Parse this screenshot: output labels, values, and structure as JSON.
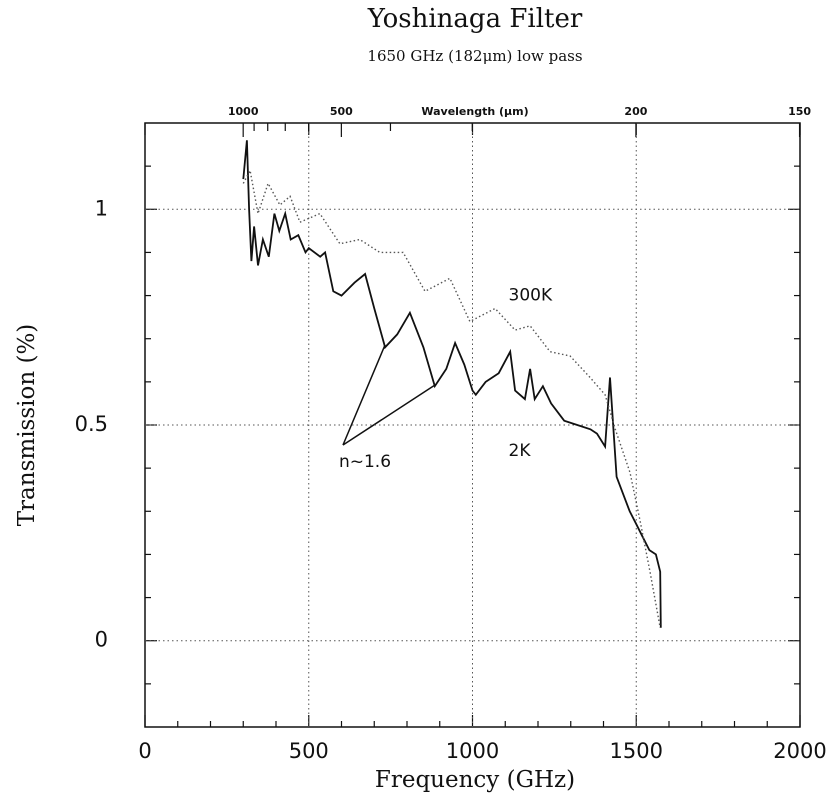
{
  "chart_data": {
    "type": "line",
    "title": "Yoshinaga Filter",
    "subtitle": "1650 GHz (182μm) low pass",
    "xlabel": "Frequency (GHz)",
    "ylabel": "Transmission (%)",
    "x2label": "Wavelength (μm)",
    "xlim": [
      0,
      2000
    ],
    "xticks": [
      0,
      500,
      1000,
      1500,
      2000
    ],
    "xminor": [
      100,
      200,
      300,
      400,
      600,
      700,
      800,
      900,
      1100,
      1200,
      1300,
      1400,
      1600,
      1700,
      1800,
      1900
    ],
    "ylim": [
      -0.2,
      1.2
    ],
    "yticks": [
      0,
      0.5,
      1
    ],
    "yminor": [
      -0.1,
      0.1,
      0.2,
      0.3,
      0.4,
      0.6,
      0.7,
      0.8,
      0.9,
      1.1
    ],
    "x2ticks": [
      1000,
      500,
      200,
      150
    ],
    "x2minor": [
      900,
      800,
      700,
      600,
      400,
      300
    ],
    "grid": true,
    "series": [
      {
        "name": "300K",
        "color": "#111111",
        "style": "solid",
        "x": [
          300,
          311,
          318,
          325,
          333,
          345,
          360,
          378,
          395,
          410,
          428,
          445,
          468,
          490,
          500,
          535,
          550,
          575,
          600,
          640,
          672,
          700,
          733,
          770,
          809,
          850,
          885,
          920,
          947,
          975,
          1000,
          1010,
          1040,
          1080,
          1115,
          1130,
          1160,
          1176,
          1190,
          1215,
          1240,
          1280,
          1320,
          1360,
          1380,
          1405,
          1420,
          1440,
          1480,
          1500,
          1520,
          1540,
          1560,
          1573,
          1575
        ],
        "values": [
          1.07,
          1.16,
          1.0,
          0.88,
          0.96,
          0.87,
          0.93,
          0.89,
          0.99,
          0.95,
          0.99,
          0.93,
          0.94,
          0.9,
          0.91,
          0.89,
          0.9,
          0.81,
          0.8,
          0.83,
          0.85,
          0.77,
          0.68,
          0.71,
          0.76,
          0.68,
          0.59,
          0.63,
          0.69,
          0.64,
          0.58,
          0.57,
          0.6,
          0.62,
          0.67,
          0.58,
          0.56,
          0.63,
          0.56,
          0.59,
          0.55,
          0.51,
          0.5,
          0.49,
          0.48,
          0.45,
          0.61,
          0.38,
          0.3,
          0.27,
          0.24,
          0.21,
          0.2,
          0.16,
          0.03
        ]
      },
      {
        "name": "2K",
        "color": "#555555",
        "style": "dotted",
        "x": [
          300,
          321,
          345,
          376,
          412,
          443,
          473,
          534,
          595,
          656,
          717,
          788,
          855,
          931,
          992,
          1069,
          1130,
          1176,
          1237,
          1298,
          1359,
          1405,
          1436,
          1481,
          1511,
          1542,
          1573
        ],
        "values": [
          1.06,
          1.09,
          0.99,
          1.06,
          1.01,
          1.03,
          0.97,
          0.99,
          0.92,
          0.93,
          0.9,
          0.9,
          0.81,
          0.84,
          0.74,
          0.77,
          0.72,
          0.73,
          0.67,
          0.66,
          0.61,
          0.57,
          0.49,
          0.39,
          0.28,
          0.16,
          0.03
        ]
      }
    ],
    "annotations": [
      "n~1.6"
    ]
  }
}
